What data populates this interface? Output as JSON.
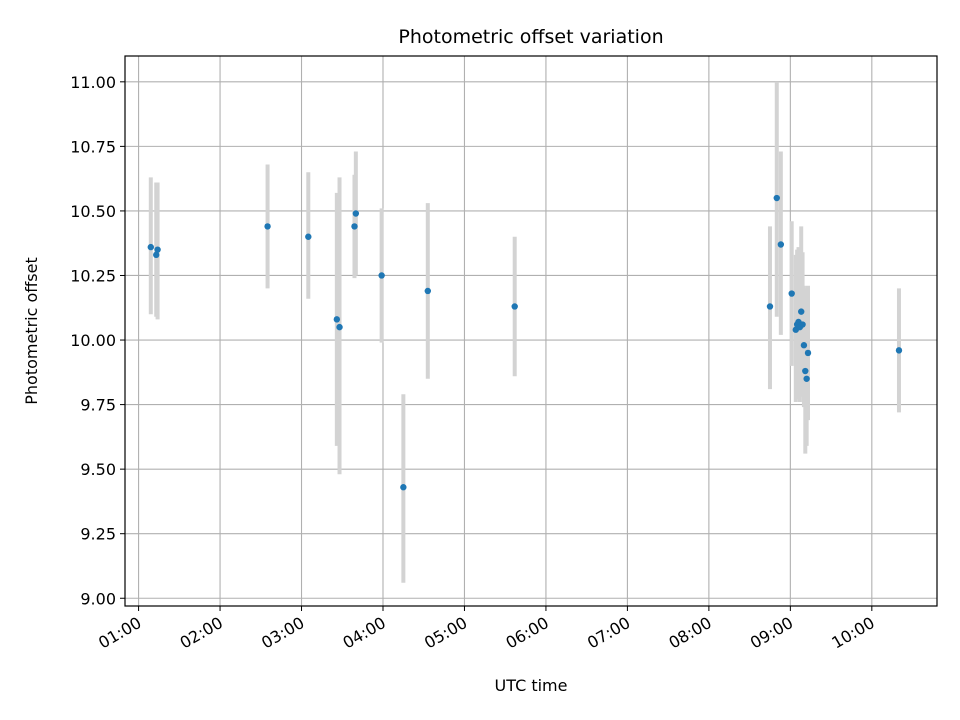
{
  "chart_data": {
    "type": "scatter",
    "title": "Photometric offset variation",
    "xlabel": "UTC time",
    "ylabel": "Photometric offset",
    "xlim": [
      "00:50",
      "10:48"
    ],
    "ylim": [
      8.97,
      11.1
    ],
    "grid": true,
    "x_ticks": [
      "01:00",
      "02:00",
      "03:00",
      "04:00",
      "05:00",
      "06:00",
      "07:00",
      "08:00",
      "09:00",
      "10:00"
    ],
    "y_ticks": [
      "9.00",
      "9.25",
      "9.50",
      "9.75",
      "10.00",
      "10.25",
      "10.50",
      "10.75",
      "11.00"
    ],
    "colors": {
      "point": "#1f77b4",
      "error_bar": "#d3d3d3",
      "grid": "#b0b0b0"
    },
    "series": [
      {
        "points": [
          {
            "x": "01:09",
            "y": 10.36,
            "ylow": 10.1,
            "yhigh": 10.63
          },
          {
            "x": "01:13",
            "y": 10.33,
            "ylow": 10.09,
            "yhigh": 10.61
          },
          {
            "x": "01:14",
            "y": 10.35,
            "ylow": 10.08,
            "yhigh": 10.61
          },
          {
            "x": "02:35",
            "y": 10.44,
            "ylow": 10.2,
            "yhigh": 10.68
          },
          {
            "x": "03:05",
            "y": 10.4,
            "ylow": 10.16,
            "yhigh": 10.65
          },
          {
            "x": "03:26",
            "y": 10.08,
            "ylow": 9.59,
            "yhigh": 10.57
          },
          {
            "x": "03:28",
            "y": 10.05,
            "ylow": 9.48,
            "yhigh": 10.63
          },
          {
            "x": "03:39",
            "y": 10.44,
            "ylow": 10.24,
            "yhigh": 10.64
          },
          {
            "x": "03:40",
            "y": 10.49,
            "ylow": 10.25,
            "yhigh": 10.73
          },
          {
            "x": "03:59",
            "y": 10.25,
            "ylow": 9.99,
            "yhigh": 10.51
          },
          {
            "x": "04:15",
            "y": 9.43,
            "ylow": 9.06,
            "yhigh": 9.79
          },
          {
            "x": "04:33",
            "y": 10.19,
            "ylow": 9.85,
            "yhigh": 10.53
          },
          {
            "x": "05:37",
            "y": 10.13,
            "ylow": 9.86,
            "yhigh": 10.4
          },
          {
            "x": "08:45",
            "y": 10.13,
            "ylow": 9.81,
            "yhigh": 10.44
          },
          {
            "x": "08:50",
            "y": 10.55,
            "ylow": 10.09,
            "yhigh": 11.0
          },
          {
            "x": "08:53",
            "y": 10.37,
            "ylow": 10.02,
            "yhigh": 10.73
          },
          {
            "x": "09:01",
            "y": 10.18,
            "ylow": 9.9,
            "yhigh": 10.46
          },
          {
            "x": "09:04",
            "y": 10.04,
            "ylow": 9.76,
            "yhigh": 10.33
          },
          {
            "x": "09:05",
            "y": 10.06,
            "ylow": 9.77,
            "yhigh": 10.35
          },
          {
            "x": "09:06",
            "y": 10.07,
            "ylow": 9.78,
            "yhigh": 10.36
          },
          {
            "x": "09:07",
            "y": 10.05,
            "ylow": 9.76,
            "yhigh": 10.34
          },
          {
            "x": "09:08",
            "y": 10.11,
            "ylow": 9.79,
            "yhigh": 10.44
          },
          {
            "x": "09:09",
            "y": 10.06,
            "ylow": 9.78,
            "yhigh": 10.34
          },
          {
            "x": "09:10",
            "y": 9.98,
            "ylow": 9.74,
            "yhigh": 10.21
          },
          {
            "x": "09:11",
            "y": 9.88,
            "ylow": 9.56,
            "yhigh": 10.2
          },
          {
            "x": "09:12",
            "y": 9.85,
            "ylow": 9.59,
            "yhigh": 10.1
          },
          {
            "x": "09:13",
            "y": 9.95,
            "ylow": 9.69,
            "yhigh": 10.21
          },
          {
            "x": "10:20",
            "y": 9.96,
            "ylow": 9.72,
            "yhigh": 10.2
          }
        ]
      }
    ]
  }
}
